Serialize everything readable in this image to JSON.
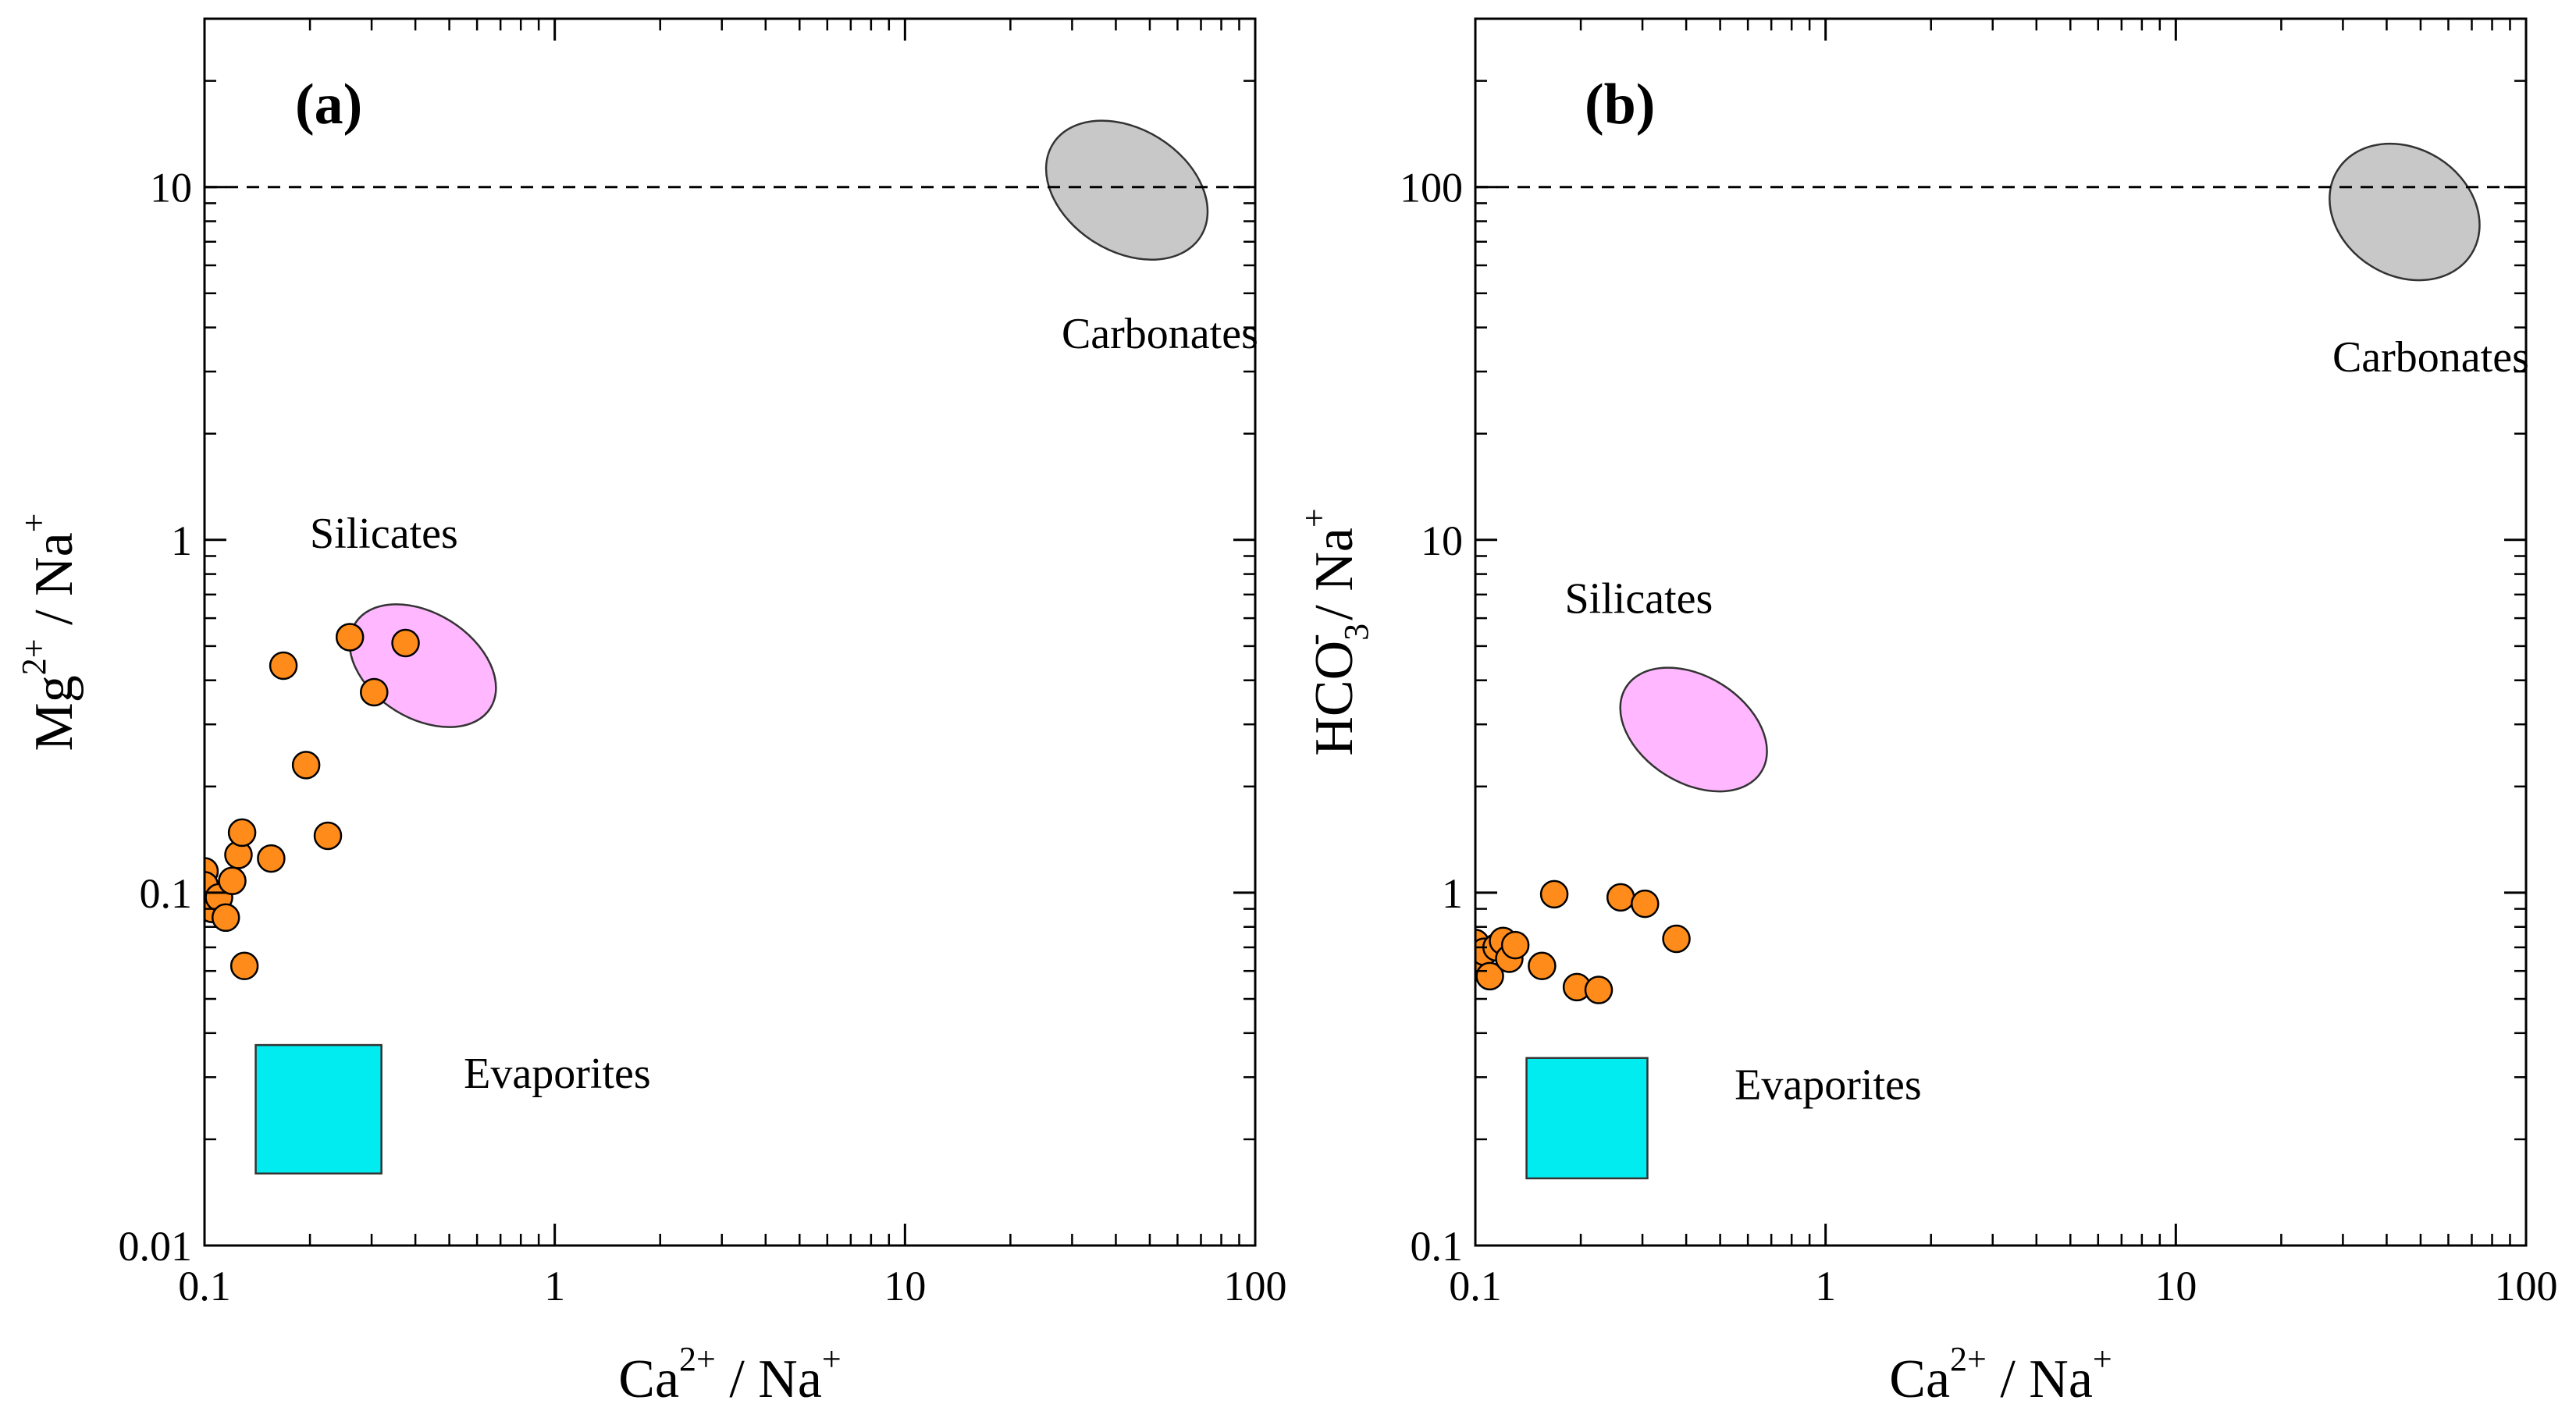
{
  "chart_data": [
    {
      "type": "scatter",
      "panel_label": "(a)",
      "x_scale": "log",
      "y_scale": "log",
      "xlim": [
        0.1,
        100
      ],
      "ylim": [
        0.01,
        30
      ],
      "x_ticks": [
        "0.1",
        "1",
        "10",
        "100"
      ],
      "y_ticks": [
        "0.01",
        "0.1",
        "1",
        "10"
      ],
      "xlabel": {
        "base": "Ca",
        "sup": "2+",
        "sep": " / ",
        "base2": "Na",
        "sup2": "+"
      },
      "ylabel": {
        "base": "Mg",
        "sup": "2+",
        "sep": " / ",
        "base2": "Na",
        "sup2": "+"
      },
      "reference_line_y": 10,
      "regions": [
        {
          "name": "Carbonates",
          "shape": "ellipse",
          "color": "#c8c8c8",
          "center": [
            43,
            9.8
          ],
          "x_range": [
            25,
            75
          ],
          "y_range": [
            4.8,
            20
          ],
          "label_at": [
            28,
            3.5
          ]
        },
        {
          "name": "Silicates",
          "shape": "ellipse",
          "color": "#ffb8ff",
          "center": [
            0.42,
            0.44
          ],
          "x_range": [
            0.24,
            0.65
          ],
          "y_range": [
            0.2,
            0.68
          ],
          "label_at": [
            0.2,
            0.95
          ]
        },
        {
          "name": "Evaporites",
          "shape": "rect",
          "color": "#00ecf0",
          "x_range": [
            0.14,
            0.32
          ],
          "y_range": [
            0.016,
            0.037
          ],
          "label_at": [
            0.55,
            0.028
          ]
        }
      ],
      "point_color": "#ff8c1a",
      "points": [
        [
          0.1,
          0.115
        ],
        [
          0.1,
          0.105
        ],
        [
          0.1,
          0.092
        ],
        [
          0.105,
          0.09
        ],
        [
          0.11,
          0.097
        ],
        [
          0.115,
          0.085
        ],
        [
          0.12,
          0.108
        ],
        [
          0.125,
          0.128
        ],
        [
          0.128,
          0.148
        ],
        [
          0.13,
          0.062
        ],
        [
          0.155,
          0.125
        ],
        [
          0.168,
          0.44
        ],
        [
          0.195,
          0.23
        ],
        [
          0.225,
          0.145
        ],
        [
          0.26,
          0.53
        ],
        [
          0.305,
          0.37
        ],
        [
          0.375,
          0.51
        ]
      ]
    },
    {
      "type": "scatter",
      "panel_label": "(b)",
      "x_scale": "log",
      "y_scale": "log",
      "xlim": [
        0.1,
        100
      ],
      "ylim": [
        0.1,
        300
      ],
      "x_ticks": [
        "0.1",
        "1",
        "10",
        "100"
      ],
      "y_ticks": [
        "0.1",
        "1",
        "10",
        "100"
      ],
      "xlabel": {
        "base": "Ca",
        "sup": "2+",
        "sep": " / ",
        "base2": "Na",
        "sup2": "+"
      },
      "ylabel": {
        "base": "HCO",
        "sub": "3",
        "sup": "-",
        "sep": " / ",
        "base2": "Na",
        "sup2": "+"
      },
      "reference_line_y": 100,
      "regions": [
        {
          "name": "Carbonates",
          "shape": "ellipse",
          "color": "#c8c8c8",
          "center": [
            45,
            85
          ],
          "x_range": [
            28,
            75
          ],
          "y_range": [
            42,
            185
          ],
          "label_at": [
            28,
            30
          ]
        },
        {
          "name": "Silicates",
          "shape": "ellipse",
          "color": "#ffb8ff",
          "center": [
            0.42,
            2.9
          ],
          "x_range": [
            0.24,
            0.65
          ],
          "y_range": [
            1.3,
            4.5
          ],
          "label_at": [
            0.18,
            6.2
          ]
        },
        {
          "name": "Evaporites",
          "shape": "rect",
          "color": "#00ecf0",
          "x_range": [
            0.14,
            0.31
          ],
          "y_range": [
            0.155,
            0.34
          ],
          "label_at": [
            0.55,
            0.26
          ]
        }
      ],
      "point_color": "#ff8c1a",
      "points": [
        [
          0.1,
          0.72
        ],
        [
          0.102,
          0.65
        ],
        [
          0.106,
          0.68
        ],
        [
          0.11,
          0.58
        ],
        [
          0.115,
          0.7
        ],
        [
          0.12,
          0.73
        ],
        [
          0.125,
          0.65
        ],
        [
          0.13,
          0.71
        ],
        [
          0.155,
          0.62
        ],
        [
          0.168,
          0.99
        ],
        [
          0.195,
          0.54
        ],
        [
          0.225,
          0.53
        ],
        [
          0.26,
          0.97
        ],
        [
          0.305,
          0.93
        ],
        [
          0.375,
          0.74
        ]
      ]
    }
  ]
}
